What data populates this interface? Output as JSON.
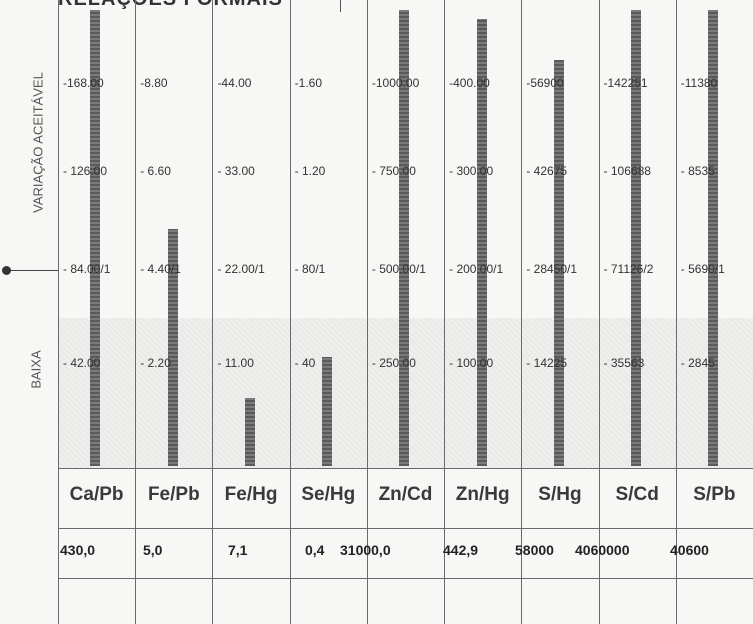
{
  "header": {
    "title": "RELAÇÕES FORMAIS"
  },
  "zones": {
    "acceptable": "VARIAÇÃO ACEITÁVEL",
    "low": "BAIXA"
  },
  "chart_data": {
    "type": "bar",
    "categories": [
      "Ca/Pb",
      "Fe/Pb",
      "Fe/Hg",
      "Se/Hg",
      "Zn/Cd",
      "Zn/Hg",
      "S/Hg",
      "S/Cd",
      "S/Pb"
    ],
    "tick_labels": [
      [
        "-168.00",
        "- 126.00",
        "- 84.00/1",
        "- 42.00"
      ],
      [
        "-8.80",
        "- 6.60",
        "- 4.40/1",
        "- 2.20"
      ],
      [
        "-44.00",
        "- 33.00",
        "- 22.00/1",
        "- 11.00"
      ],
      [
        "-1.60",
        "- 1.20",
        "- 80/1",
        "- 40"
      ],
      [
        "-1000.00",
        "- 750.00",
        "- 500.00/1",
        "- 250.00"
      ],
      [
        "-400.00",
        "- 300.00",
        "- 200.00/1",
        "- 100.00"
      ],
      [
        "-56900",
        "- 42675",
        "- 28450/1",
        "- 14225"
      ],
      [
        "-142251",
        "- 106688",
        "- 71126/2",
        "- 35563"
      ],
      [
        "-11380",
        "- 8535",
        "- 5690/1",
        "- 2845"
      ]
    ],
    "values": [
      430.0,
      5.0,
      7.1,
      0.4,
      31000.0,
      442.9,
      58000,
      4060000,
      40600
    ],
    "value_labels": [
      "430,0",
      "5,0",
      "7,1",
      "0,4",
      "31000,0",
      "442,9",
      "58000",
      "4060000",
      "40600"
    ],
    "bar_level": [
      1.0,
      0.52,
      0.15,
      0.24,
      1.0,
      0.98,
      0.89,
      1.0,
      1.0
    ],
    "grid": true
  }
}
